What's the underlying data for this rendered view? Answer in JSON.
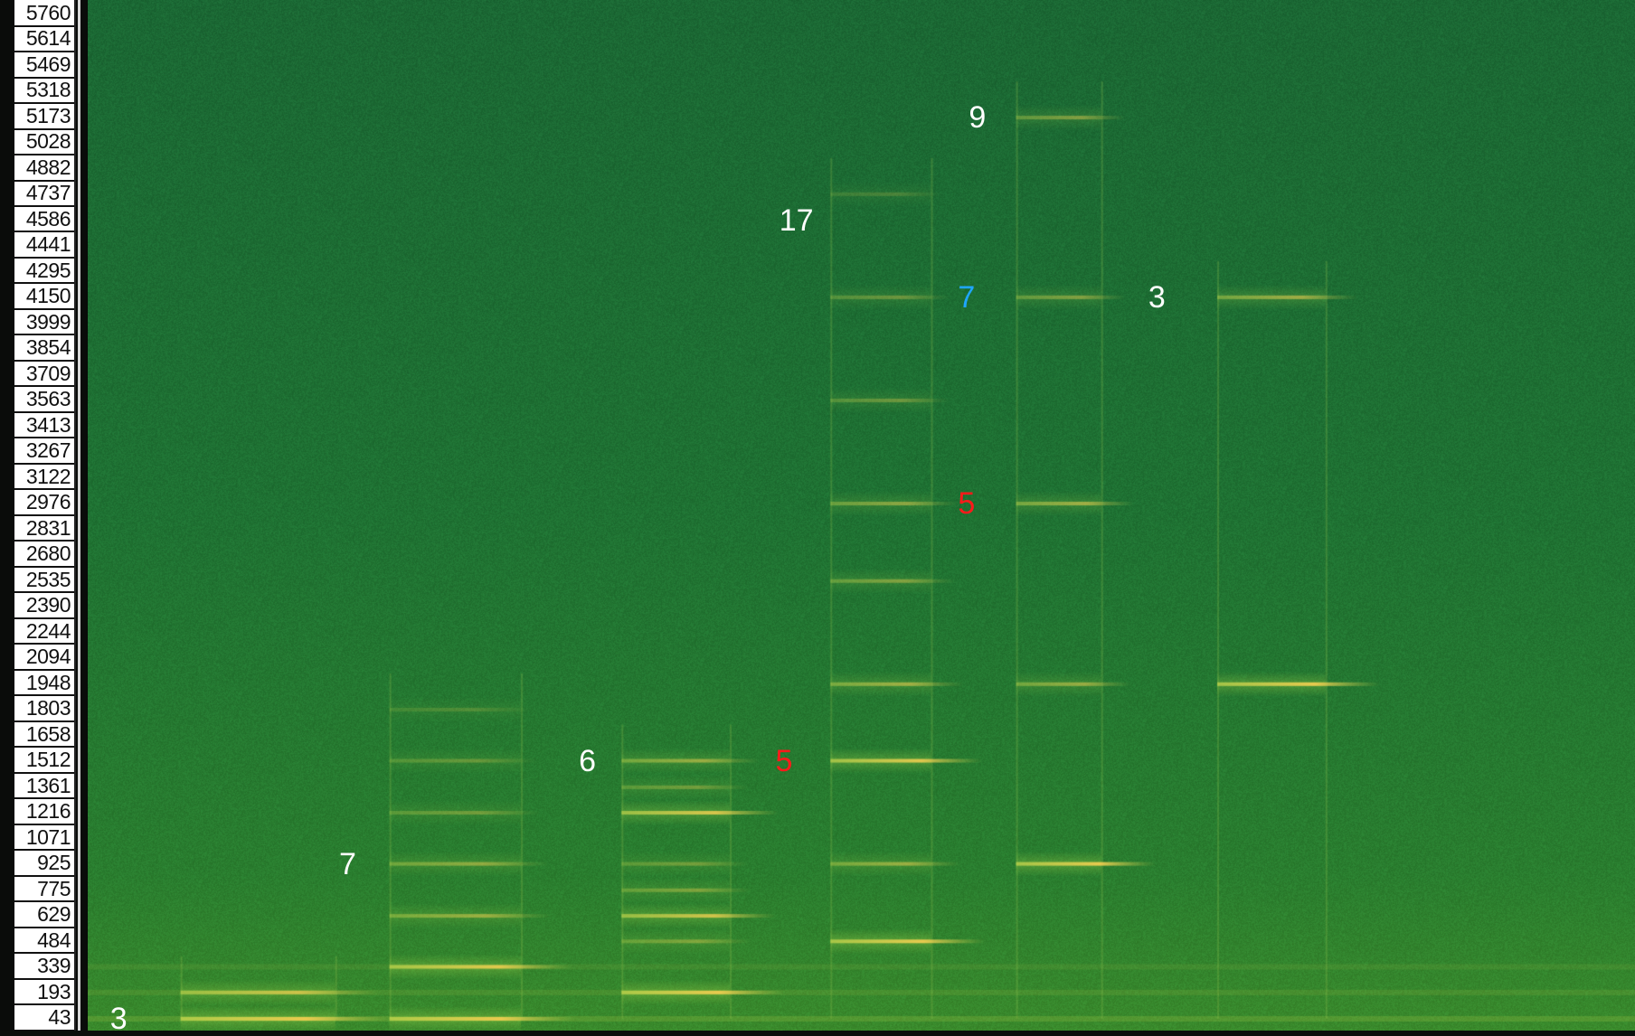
{
  "chart_data": {
    "type": "heatmap",
    "title": "",
    "xlabel": "",
    "ylabel": "",
    "y_ticks": [
      "5760",
      "5614",
      "5469",
      "5318",
      "5173",
      "5028",
      "4882",
      "4737",
      "4586",
      "4441",
      "4295",
      "4150",
      "3999",
      "3854",
      "3709",
      "3563",
      "3413",
      "3267",
      "3122",
      "2976",
      "2831",
      "2680",
      "2535",
      "2390",
      "2244",
      "2094",
      "1948",
      "1803",
      "1658",
      "1512",
      "1361",
      "1216",
      "1071",
      "925",
      "775",
      "629",
      "484",
      "339",
      "193",
      "43"
    ],
    "ylim": [
      43,
      5760
    ],
    "colors": {
      "background": "#1e6e32",
      "harmonic_low": "#c8d24a",
      "harmonic_high": "#e9c64a",
      "axis_bg": "#ffffff"
    },
    "partials": [
      {
        "group": 1,
        "start_frac": 0.06,
        "end_frac": 0.16,
        "freqs": [
          43,
          193
        ],
        "strength": [
          1.0,
          0.8
        ]
      },
      {
        "group": 2,
        "start_frac": 0.195,
        "end_frac": 0.28,
        "freqs": [
          43,
          339,
          629,
          925,
          1216,
          1512,
          1803
        ],
        "strength": [
          1.0,
          0.95,
          0.55,
          0.5,
          0.35,
          0.3,
          0.2
        ]
      },
      {
        "group": 3,
        "start_frac": 0.345,
        "end_frac": 0.415,
        "freqs": [
          193,
          484,
          629,
          775,
          925,
          1216,
          1361,
          1512
        ],
        "strength": [
          1.0,
          0.4,
          0.85,
          0.4,
          0.35,
          0.9,
          0.35,
          0.55
        ]
      },
      {
        "group": 4,
        "start_frac": 0.48,
        "end_frac": 0.545,
        "freqs": [
          484,
          925,
          1512,
          1948,
          2535,
          2976,
          3563,
          4150,
          4737
        ],
        "strength": [
          1.0,
          0.55,
          0.95,
          0.6,
          0.45,
          0.5,
          0.35,
          0.35,
          0.2
        ]
      },
      {
        "group": 5,
        "start_frac": 0.6,
        "end_frac": 0.655,
        "freqs": [
          925,
          1948,
          2976,
          4150,
          5173
        ],
        "strength": [
          1.0,
          0.55,
          0.6,
          0.45,
          0.45
        ]
      },
      {
        "group": 6,
        "start_frac": 0.73,
        "end_frac": 0.8,
        "freqs": [
          1948,
          4150
        ],
        "strength": [
          1.0,
          0.6
        ]
      }
    ],
    "annotations": [
      {
        "text": "3",
        "x_frac": 0.02,
        "freq": 43,
        "color": "#ffffff"
      },
      {
        "text": "7",
        "x_frac": 0.168,
        "freq": 925,
        "color": "#ffffff"
      },
      {
        "text": "6",
        "x_frac": 0.323,
        "freq": 1512,
        "color": "#ffffff"
      },
      {
        "text": "5",
        "x_frac": 0.45,
        "freq": 1512,
        "color": "#ff1a1a"
      },
      {
        "text": "17",
        "x_frac": 0.458,
        "freq": 4586,
        "color": "#ffffff"
      },
      {
        "text": "9",
        "x_frac": 0.575,
        "freq": 5173,
        "color": "#ffffff"
      },
      {
        "text": "7",
        "x_frac": 0.568,
        "freq": 4150,
        "color": "#1fa6ff"
      },
      {
        "text": "5",
        "x_frac": 0.568,
        "freq": 2976,
        "color": "#ff1a1a"
      },
      {
        "text": "3",
        "x_frac": 0.691,
        "freq": 4150,
        "color": "#ffffff"
      }
    ]
  }
}
